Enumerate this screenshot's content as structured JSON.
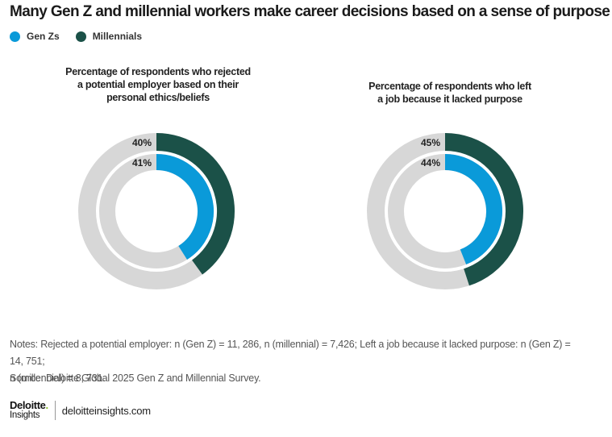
{
  "title": "Many Gen Z and millennial workers make career decisions based on a sense of purpose",
  "legend": [
    {
      "label": "Gen Zs",
      "color": "#0a9ad9"
    },
    {
      "label": "Millennials",
      "color": "#1b5148"
    }
  ],
  "colors": {
    "genz": "#0a9ad9",
    "millennial": "#1b5148",
    "remainder": "#d7d7d7"
  },
  "chart_data": [
    {
      "type": "pie",
      "title_lines": [
        "Percentage of respondents who rejected",
        "a potential employer based on their",
        "personal ethics/beliefs"
      ],
      "series": [
        {
          "name": "Millennials",
          "ring": "outer",
          "value": 40,
          "label": "40%"
        },
        {
          "name": "Gen Zs",
          "ring": "inner",
          "value": 41,
          "label": "41%"
        }
      ]
    },
    {
      "type": "pie",
      "title_lines": [
        "Percentage of respondents who left",
        "a job because it lacked purpose"
      ],
      "series": [
        {
          "name": "Millennials",
          "ring": "outer",
          "value": 45,
          "label": "45%"
        },
        {
          "name": "Gen Zs",
          "ring": "inner",
          "value": 44,
          "label": "44%"
        }
      ]
    }
  ],
  "notes_line1": "Notes: Rejected a potential employer: n (Gen Z) = 11, 286, n (millennial) = 7,426; Left a job because it lacked purpose: n (Gen Z) = 14, 751;",
  "notes_line2": "n (millennial) = 8, 731.",
  "source": "Source: Deloitte Global 2025 Gen Z and Millennial Survey.",
  "brand": {
    "name": "Deloitte",
    "dot": ".",
    "sub": "Insights",
    "url": "deloitteinsights.com"
  }
}
